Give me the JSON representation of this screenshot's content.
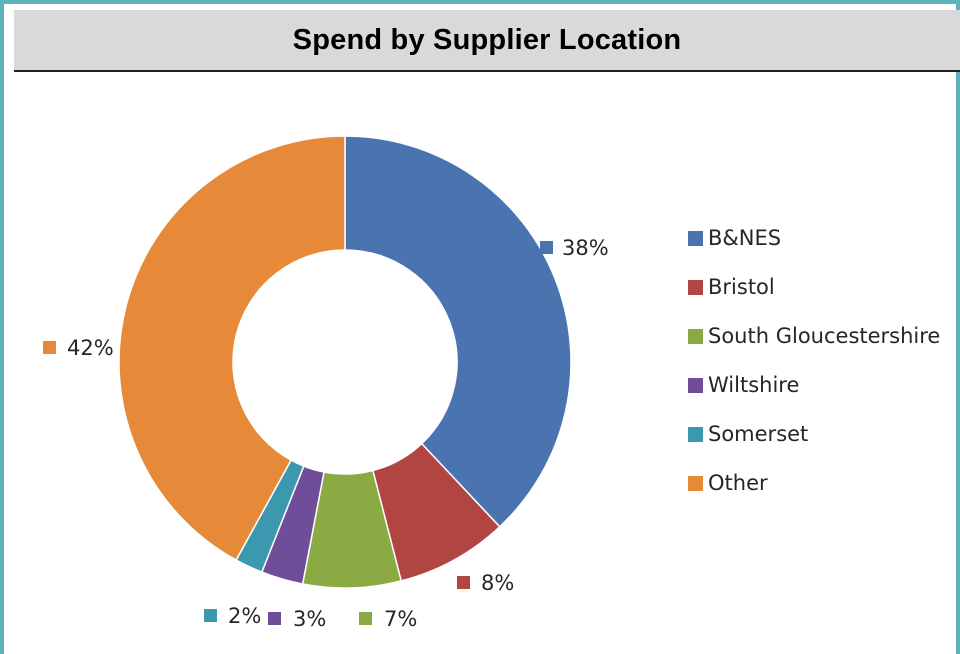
{
  "chart_data": {
    "type": "pie",
    "title": "Spend by Supplier Location",
    "categories": [
      "B&NES",
      "Bristol",
      "South Gloucestershire",
      "Wiltshire",
      "Somerset",
      "Other"
    ],
    "values": [
      38,
      8,
      7,
      3,
      2,
      42
    ],
    "data_labels": [
      "38%",
      "8%",
      "7%",
      "3%",
      "2%",
      "42%"
    ],
    "value_format": "percent",
    "donut": true,
    "legend_position": "right",
    "colors": [
      "#4a74b0",
      "#b14542",
      "#8aab43",
      "#6f4d98",
      "#3b98af",
      "#e68a3a"
    ]
  }
}
